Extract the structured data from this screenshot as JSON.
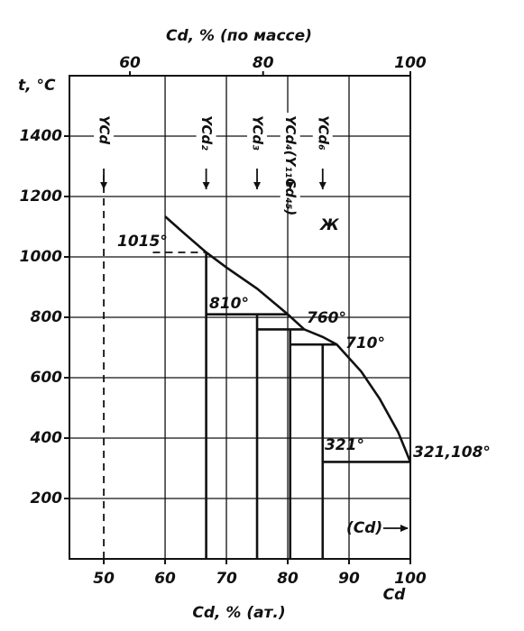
{
  "chart_data": {
    "type": "phase-diagram",
    "x2_label": "Cd, % (по массе)",
    "y_label": "t, °C",
    "x_label": "Cd, % (ат.)",
    "x_end_label": "Cd",
    "xlim": [
      44.4,
      100
    ],
    "ylim": [
      0,
      1600
    ],
    "xticks": [
      50,
      60,
      70,
      80,
      90,
      100
    ],
    "yticks": [
      200,
      400,
      600,
      800,
      1000,
      1200,
      1400
    ],
    "x2ticks": [
      60,
      80,
      100
    ],
    "grid": true,
    "color": "#111111",
    "liquidus": {
      "x": [
        60,
        63,
        66.7,
        70,
        75,
        80,
        82.7,
        85.7,
        88,
        92,
        95,
        98,
        100
      ],
      "y": [
        1134,
        1080,
        1015,
        965,
        895,
        810,
        760,
        735,
        710,
        620,
        530,
        420,
        321
      ]
    },
    "phase_lines": [
      {
        "x": [
          66.7,
          66.7
        ],
        "y": [
          0,
          1015
        ]
      },
      {
        "x": [
          66.7,
          80
        ],
        "y": [
          810,
          810
        ]
      },
      {
        "x": [
          75,
          75
        ],
        "y": [
          0,
          810
        ]
      },
      {
        "x": [
          75,
          82.7
        ],
        "y": [
          760,
          760
        ]
      },
      {
        "x": [
          80.4,
          80.4
        ],
        "y": [
          0,
          760
        ]
      },
      {
        "x": [
          80.4,
          88
        ],
        "y": [
          710,
          710
        ]
      },
      {
        "x": [
          85.7,
          85.7
        ],
        "y": [
          0,
          710
        ]
      },
      {
        "x": [
          85.7,
          100
        ],
        "y": [
          321,
          321
        ]
      }
    ],
    "dashed_lines": [
      {
        "x": [
          50,
          50
        ],
        "y": [
          0,
          1270
        ]
      },
      {
        "x": [
          58,
          66.7
        ],
        "y": [
          1015,
          1015
        ]
      }
    ],
    "compounds": [
      {
        "name": "YCd",
        "x": 50
      },
      {
        "name": "YCd₂",
        "x": 66.7
      },
      {
        "name": "YCd₃",
        "x": 75
      },
      {
        "name": "YCd₄(Y₁₁Cd₄₅)",
        "x": 80.4
      },
      {
        "name": "YCd₆",
        "x": 85.7
      }
    ],
    "annotations": [
      "1015°",
      "810°",
      "760°",
      "710°",
      "321°",
      "321,108°",
      "Ж",
      "(Cd)"
    ]
  }
}
